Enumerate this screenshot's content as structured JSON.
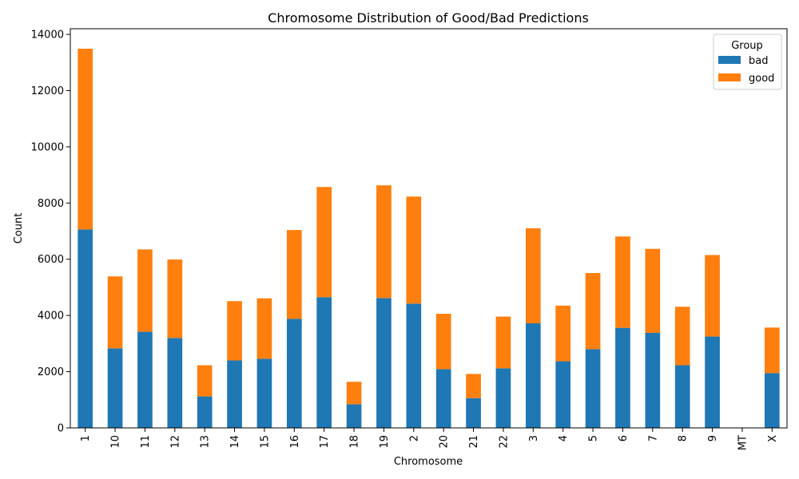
{
  "chart_data": {
    "type": "bar",
    "stacked": true,
    "title": "Chromosome Distribution of Good/Bad Predictions",
    "xlabel": "Chromosome",
    "ylabel": "Count",
    "ylim": [
      0,
      14200
    ],
    "yticks": [
      0,
      2000,
      4000,
      6000,
      8000,
      10000,
      12000,
      14000
    ],
    "grid": false,
    "legend": {
      "title": "Group",
      "position": "top-right"
    },
    "categories": [
      "1",
      "10",
      "11",
      "12",
      "13",
      "14",
      "15",
      "16",
      "17",
      "18",
      "19",
      "2",
      "20",
      "21",
      "22",
      "3",
      "4",
      "5",
      "6",
      "7",
      "8",
      "9",
      "MT",
      "X"
    ],
    "series": [
      {
        "name": "bad",
        "color": "#1f77b4",
        "values": [
          7060,
          2830,
          3420,
          3200,
          1120,
          2400,
          2460,
          3880,
          4650,
          840,
          4620,
          4420,
          2090,
          1060,
          2120,
          3720,
          2370,
          2800,
          3560,
          3380,
          2230,
          3250,
          5,
          1950
        ]
      },
      {
        "name": "good",
        "color": "#ff7f0e",
        "values": [
          6430,
          2560,
          2930,
          2790,
          1110,
          2110,
          2150,
          3160,
          3920,
          800,
          4010,
          3810,
          1970,
          860,
          1840,
          3380,
          1980,
          2710,
          3250,
          2990,
          2080,
          2900,
          5,
          1620
        ]
      }
    ]
  }
}
